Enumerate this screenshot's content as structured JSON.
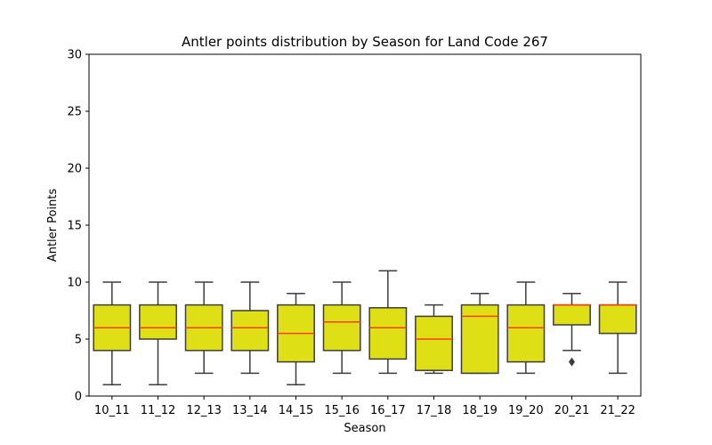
{
  "chart_data": {
    "type": "box",
    "title": "Antler points distribution by Season for Land Code 267",
    "xlabel": "Season",
    "ylabel": "Antler Points",
    "ylim": [
      0,
      30
    ],
    "yticks": [
      0,
      5,
      10,
      15,
      20,
      25,
      30
    ],
    "grid": false,
    "box_color": "#dfdf16",
    "edge_color": "#3d3d3d",
    "median_color": "#ff3b0f",
    "categories": [
      "10_11",
      "11_12",
      "12_13",
      "13_14",
      "14_15",
      "15_16",
      "16_17",
      "17_18",
      "18_19",
      "19_20",
      "20_21",
      "21_22"
    ],
    "boxes": [
      {
        "whislo": 1,
        "q1": 4,
        "med": 6,
        "q3": 8,
        "whishi": 10,
        "fliers": []
      },
      {
        "whislo": 1,
        "q1": 5,
        "med": 6,
        "q3": 8,
        "whishi": 10,
        "fliers": []
      },
      {
        "whislo": 2,
        "q1": 4,
        "med": 6,
        "q3": 8,
        "whishi": 10,
        "fliers": []
      },
      {
        "whislo": 2,
        "q1": 4,
        "med": 6,
        "q3": 7.5,
        "whishi": 10,
        "fliers": []
      },
      {
        "whislo": 1,
        "q1": 3,
        "med": 5.5,
        "q3": 8,
        "whishi": 9,
        "fliers": []
      },
      {
        "whislo": 2,
        "q1": 4,
        "med": 6.5,
        "q3": 8,
        "whishi": 10,
        "fliers": []
      },
      {
        "whislo": 2,
        "q1": 3.25,
        "med": 6,
        "q3": 7.75,
        "whishi": 11,
        "fliers": []
      },
      {
        "whislo": 2,
        "q1": 2.25,
        "med": 5,
        "q3": 7,
        "whishi": 8,
        "fliers": []
      },
      {
        "whislo": 2,
        "q1": 2,
        "med": 7,
        "q3": 8,
        "whishi": 9,
        "fliers": []
      },
      {
        "whislo": 2,
        "q1": 3,
        "med": 6,
        "q3": 8,
        "whishi": 10,
        "fliers": []
      },
      {
        "whislo": 4,
        "q1": 6.25,
        "med": 8,
        "q3": 8,
        "whishi": 9,
        "fliers": [
          3
        ]
      },
      {
        "whislo": 2,
        "q1": 5.5,
        "med": 8,
        "q3": 8,
        "whishi": 10,
        "fliers": []
      }
    ]
  }
}
